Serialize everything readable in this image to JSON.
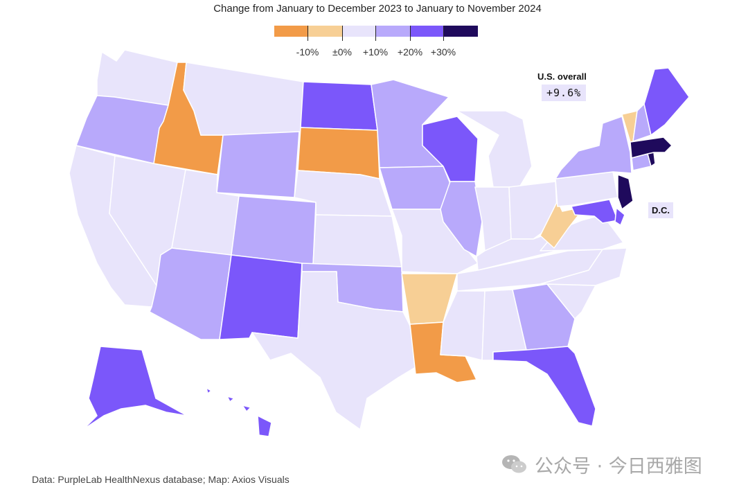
{
  "chart_data": {
    "type": "map",
    "title": "Change from January to December 2023 to January to November 2024",
    "legend": {
      "bins": [
        {
          "key": "down10",
          "color": "#f29b48"
        },
        {
          "key": "zero",
          "color": "#f7cf95"
        },
        {
          "key": "up10",
          "color": "#e8e4fb"
        },
        {
          "key": "up20",
          "color": "#b8a9fb"
        },
        {
          "key": "up30",
          "color": "#7b57fa"
        },
        {
          "key": "top",
          "color": "#1f0a5c"
        }
      ],
      "labels": [
        "-10%",
        "±0%",
        "+10%",
        "+20%",
        "+30%"
      ]
    },
    "overall": {
      "label": "U.S. overall",
      "value": "+9.6%"
    },
    "dc_label": "D.C.",
    "states": {
      "WA": "up10",
      "OR": "up20",
      "CA": "up10",
      "NV": "up10",
      "ID": "down10",
      "MT": "up10",
      "WY": "up20",
      "UT": "up10",
      "AZ": "up20",
      "CO": "up20",
      "NM": "up30",
      "ND": "up30",
      "SD": "down10",
      "NE": "up10",
      "KS": "up10",
      "OK": "up20",
      "TX": "up10",
      "MN": "up20",
      "IA": "up20",
      "MO": "up10",
      "AR": "zero",
      "LA": "down10",
      "WI": "up30",
      "IL": "up20",
      "MI": "up10",
      "IN": "up10",
      "OH": "up10",
      "KY": "up10",
      "TN": "up10",
      "MS": "up10",
      "AL": "up10",
      "GA": "up20",
      "FL": "up30",
      "SC": "up10",
      "NC": "up10",
      "VA": "up10",
      "WV": "zero",
      "MD": "up30",
      "DE": "up30",
      "PA": "up10",
      "NJ": "top",
      "NY": "up20",
      "CT": "up20",
      "RI": "top",
      "MA": "top",
      "VT": "zero",
      "NH": "up20",
      "ME": "up30",
      "AK": "up30",
      "HI": "up30"
    }
  },
  "source": "Data: PurpleLab HealthNexus database; Map: Axios Visuals",
  "watermark": "公众号 · 今日西雅图"
}
